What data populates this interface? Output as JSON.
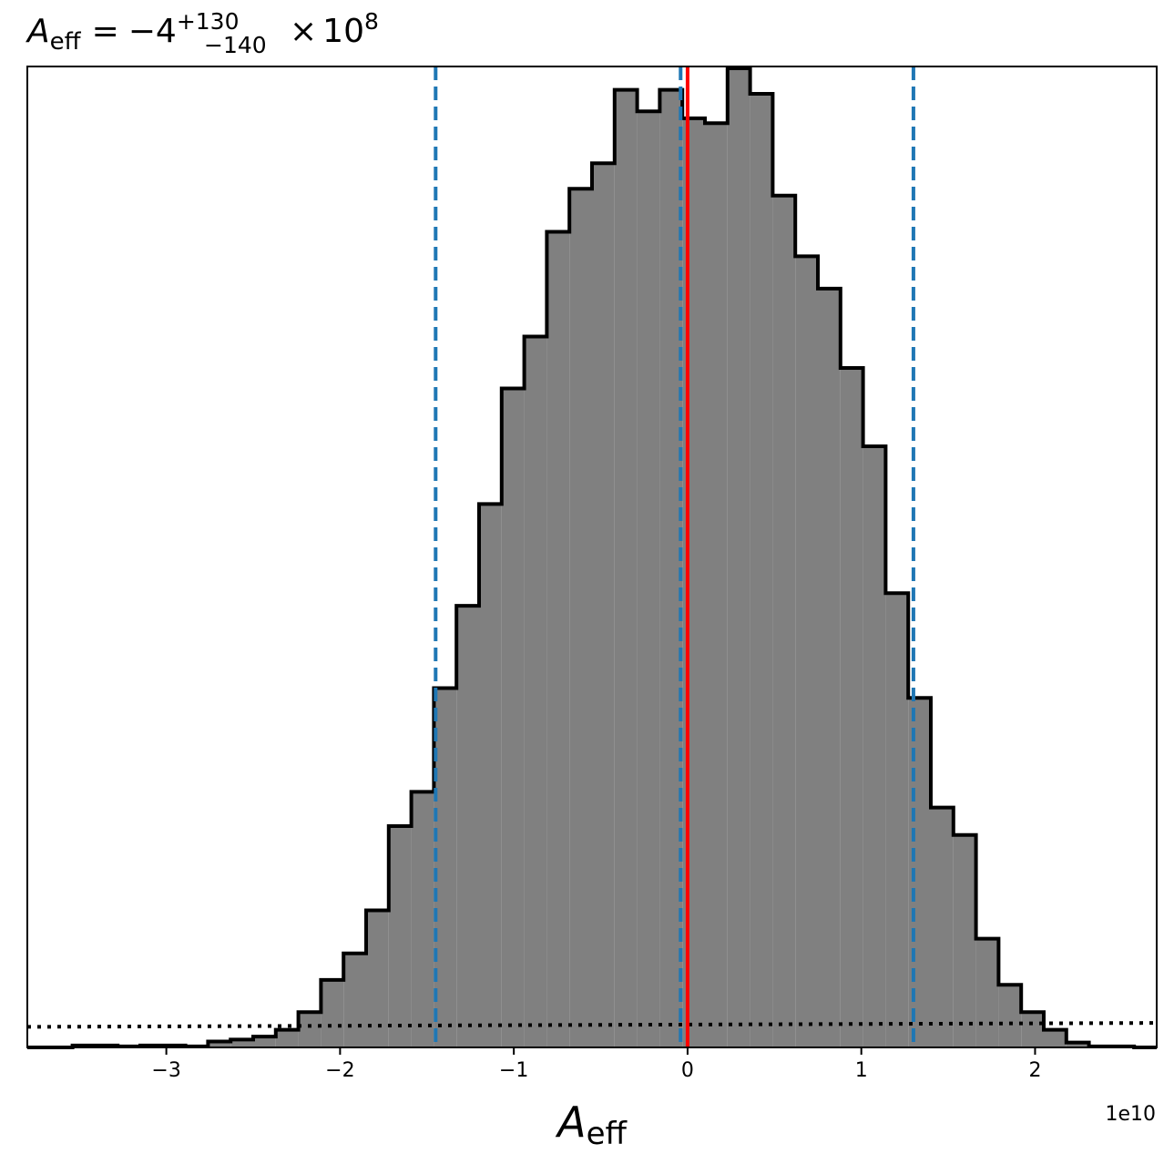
{
  "chart_data": {
    "type": "histogram",
    "title": {
      "base": "A",
      "base_sub": "eff",
      "equals": "=",
      "value": "−4",
      "sup": "+130",
      "sub": "−140",
      "times": "×",
      "power_base": "10",
      "power_exp": "8"
    },
    "xlabel": {
      "base": "A",
      "sub": "eff"
    },
    "offset_text": "1e10",
    "xlim": [
      -3.8,
      2.7
    ],
    "ylim": [
      0,
      1.0
    ],
    "ylabel": "",
    "y_ticks_shown": false,
    "x_ticks": [
      {
        "value": -3,
        "label": "−3"
      },
      {
        "value": -2,
        "label": "−2"
      },
      {
        "value": -1,
        "label": "−1"
      },
      {
        "value": 0,
        "label": "0"
      },
      {
        "value": 1,
        "label": "1"
      },
      {
        "value": 2,
        "label": "2"
      }
    ],
    "x_unit_scale": 10000000000.0,
    "bin_edges": [
      -3.8,
      -3.67,
      -3.54,
      -3.41,
      -3.28,
      -3.15,
      -3.02,
      -2.89,
      -2.76,
      -2.63,
      -2.5,
      -2.37,
      -2.24,
      -2.11,
      -1.98,
      -1.85,
      -1.72,
      -1.59,
      -1.46,
      -1.33,
      -1.2,
      -1.07,
      -0.94,
      -0.81,
      -0.68,
      -0.55,
      -0.42,
      -0.29,
      -0.16,
      -0.03,
      0.1,
      0.23,
      0.36,
      0.49,
      0.62,
      0.75,
      0.88,
      1.01,
      1.14,
      1.27,
      1.4,
      1.53,
      1.66,
      1.79,
      1.92,
      2.05,
      2.18,
      2.31,
      2.44,
      2.57,
      2.7
    ],
    "counts": [
      0.0,
      0.0,
      0.002,
      0.002,
      0.001,
      0.002,
      0.002,
      0.001,
      0.006,
      0.008,
      0.011,
      0.018,
      0.036,
      0.069,
      0.096,
      0.14,
      0.226,
      0.261,
      0.367,
      0.451,
      0.555,
      0.673,
      0.726,
      0.833,
      0.877,
      0.903,
      0.978,
      0.956,
      0.978,
      0.949,
      0.944,
      1.0,
      0.974,
      0.87,
      0.808,
      0.775,
      0.694,
      0.614,
      0.464,
      0.357,
      0.245,
      0.217,
      0.111,
      0.064,
      0.036,
      0.018,
      0.005,
      0.001,
      0.001,
      0.0
    ],
    "fill_color": "#808080",
    "edge_color": "#000000",
    "vlines": [
      {
        "x": -1.45,
        "style": "dashed",
        "color": "#1f77b4"
      },
      {
        "x": -0.04,
        "style": "dashed",
        "color": "#1f77b4"
      },
      {
        "x": 1.3,
        "style": "dashed",
        "color": "#1f77b4"
      },
      {
        "x": 0.0,
        "style": "solid",
        "color": "#ff0000"
      }
    ],
    "hline": {
      "style": "dotted",
      "color": "#000000",
      "y_left": 0.021,
      "y_right": 0.025
    },
    "grid": false,
    "legend": "none"
  }
}
